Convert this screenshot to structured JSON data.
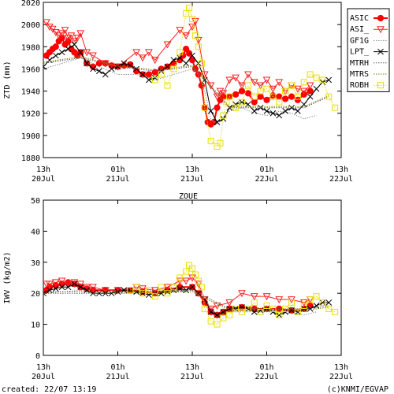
{
  "title": "ZOUE",
  "footer": {
    "created": "created: 22/07 13:19",
    "credit": "(c)KNMI/EGVAP"
  },
  "legend": [
    {
      "name": "ASIC",
      "color": "#ff0000",
      "marker": "filled-circle",
      "line": "solid"
    },
    {
      "name": "ASI_",
      "color": "#ff2020",
      "marker": "down-triangle",
      "line": "solid"
    },
    {
      "name": "GF1G",
      "color": "#909090",
      "marker": "none",
      "line": "dotted"
    },
    {
      "name": "LPT_",
      "color": "#000000",
      "marker": "x",
      "line": "solid"
    },
    {
      "name": "MTRH",
      "color": "#606060",
      "marker": "none",
      "line": "dotted"
    },
    {
      "name": "MTRS",
      "color": "#808000",
      "marker": "none",
      "line": "dotted"
    },
    {
      "name": "ROBH",
      "color": "#e8e000",
      "marker": "open-square",
      "line": "dotted"
    }
  ],
  "chart_data": [
    {
      "type": "line",
      "ylabel": "ZTD (mm)",
      "ylim": [
        1880,
        2020
      ],
      "yticks": [
        1880,
        1900,
        1920,
        1940,
        1960,
        1980,
        2000,
        2020
      ],
      "xlim_hours": [
        0,
        48
      ],
      "xticks": [
        {
          "hour": 0,
          "top": "13h",
          "bottom": "20Jul"
        },
        {
          "hour": 12,
          "top": "01h",
          "bottom": "21Jul"
        },
        {
          "hour": 24,
          "top": "13h",
          "bottom": "21Jul"
        },
        {
          "hour": 36,
          "top": "01h",
          "bottom": "22Jul"
        },
        {
          "hour": 48,
          "top": "13h",
          "bottom": "22Jul"
        }
      ],
      "series": [
        {
          "name": "ASIC",
          "x": [
            0.5,
            1,
            1.5,
            2,
            2.5,
            3,
            3.5,
            4,
            4.5,
            5,
            5.5,
            6,
            7,
            8,
            9,
            10,
            11,
            12,
            13,
            14,
            15,
            16,
            17,
            18,
            19,
            20,
            21,
            22,
            22.5,
            23,
            23.5,
            24,
            24.5,
            25,
            25.5,
            26,
            26.5,
            27,
            27.5,
            28,
            28.5,
            29,
            30,
            31,
            32,
            33,
            34,
            35,
            36,
            37,
            38,
            39,
            40,
            41,
            42,
            43
          ],
          "y": [
            1972,
            1975,
            1978,
            1980,
            1985,
            1988,
            1982,
            1985,
            1978,
            1975,
            1972,
            1975,
            1965,
            1962,
            1965,
            1965,
            1963,
            1962,
            1963,
            1964,
            1958,
            1955,
            1955,
            1957,
            1960,
            1962,
            1965,
            1968,
            1972,
            1978,
            1974,
            1968,
            1960,
            1955,
            1945,
            1925,
            1912,
            1910,
            1912,
            1925,
            1932,
            1935,
            1935,
            1937,
            1940,
            1938,
            1930,
            1935,
            1932,
            1936,
            1935,
            1933,
            1935,
            1932,
            1937,
            1940
          ]
        },
        {
          "name": "ASI_",
          "x": [
            0.5,
            1,
            1.5,
            2,
            2.5,
            3,
            3.5,
            4,
            4.5,
            5,
            5.5,
            6,
            7,
            8,
            10,
            12,
            15,
            16,
            17,
            18,
            20,
            22,
            23,
            24,
            24.5,
            25,
            26,
            27,
            28,
            28.5,
            29,
            30,
            31,
            32,
            33,
            34,
            35,
            36,
            37,
            38,
            39,
            40,
            41,
            42,
            43
          ],
          "y": [
            2002,
            1998,
            1996,
            1993,
            1990,
            1992,
            1995,
            1988,
            1990,
            1985,
            1988,
            1992,
            1975,
            1972,
            1965,
            1962,
            1975,
            1970,
            1975,
            1968,
            1982,
            1995,
            1990,
            1998,
            2003,
            1986,
            1955,
            1945,
            1935,
            1940,
            1938,
            1950,
            1952,
            1945,
            1955,
            1948,
            1945,
            1950,
            1942,
            1948,
            1940,
            1945,
            1942,
            1940,
            1945
          ]
        },
        {
          "name": "GF1G",
          "x": [
            0,
            3,
            6,
            9,
            12,
            15,
            18,
            21,
            24,
            25,
            26,
            27,
            28,
            30,
            32,
            34,
            36,
            38,
            40,
            42,
            44
          ],
          "y": [
            1960,
            1965,
            1970,
            1962,
            1955,
            1955,
            1950,
            1955,
            1960,
            1955,
            1940,
            1915,
            1910,
            1922,
            1925,
            1920,
            1918,
            1922,
            1920,
            1915,
            1918
          ]
        },
        {
          "name": "LPT_",
          "x": [
            0,
            1,
            2,
            3,
            4,
            5,
            6,
            7,
            8,
            9,
            10,
            11,
            12,
            13,
            14,
            15,
            16,
            17,
            18,
            19,
            20,
            21,
            22,
            23,
            24,
            25,
            26,
            27,
            28,
            29,
            30,
            31,
            32,
            33,
            34,
            35,
            36,
            37,
            38,
            39,
            40,
            41,
            42,
            43,
            44,
            45,
            46
          ],
          "y": [
            1962,
            1968,
            1972,
            1975,
            1978,
            1982,
            1975,
            1965,
            1960,
            1958,
            1955,
            1960,
            1962,
            1965,
            1963,
            1960,
            1955,
            1950,
            1952,
            1958,
            1962,
            1968,
            1970,
            1965,
            1972,
            1965,
            1950,
            1922,
            1912,
            1915,
            1925,
            1928,
            1930,
            1928,
            1922,
            1925,
            1922,
            1920,
            1918,
            1922,
            1925,
            1922,
            1928,
            1935,
            1942,
            1948,
            1950
          ]
        },
        {
          "name": "MTRH",
          "x": [
            0,
            6,
            12,
            18,
            24,
            30,
            36,
            42,
            46
          ],
          "y": [
            1965,
            1970,
            1962,
            1958,
            1962,
            1925,
            1925,
            1925,
            1935
          ]
        },
        {
          "name": "MTRS",
          "x": [
            0,
            6,
            12,
            18,
            24,
            30,
            36,
            42,
            46
          ],
          "y": [
            1966,
            1971,
            1963,
            1959,
            1963,
            1926,
            1926,
            1926,
            1936
          ]
        },
        {
          "name": "ROBH",
          "x": [
            18,
            19,
            20,
            21,
            22,
            23,
            23.5,
            24,
            24.5,
            25,
            25.5,
            26,
            27,
            28,
            28.5,
            29,
            29.5,
            30,
            31,
            32,
            33,
            34,
            35,
            36,
            37,
            38,
            39,
            40,
            41,
            42,
            43,
            44,
            45,
            46,
            47
          ],
          "y": [
            1950,
            1955,
            1945,
            1960,
            1975,
            2010,
            2015,
            2005,
            1990,
            1980,
            1965,
            1925,
            1895,
            1890,
            1893,
            1918,
            1930,
            1935,
            1925,
            1930,
            1945,
            1935,
            1940,
            1942,
            1935,
            1930,
            1940,
            1945,
            1935,
            1948,
            1955,
            1952,
            1950,
            1935,
            1925
          ]
        }
      ]
    },
    {
      "type": "line",
      "ylabel": "IWV (kg/m2)",
      "ylim": [
        0,
        50
      ],
      "yticks": [
        0,
        10,
        20,
        30,
        40,
        50
      ],
      "xlim_hours": [
        0,
        48
      ],
      "xticks": [
        {
          "hour": 0,
          "top": "13h",
          "bottom": "20Jul"
        },
        {
          "hour": 12,
          "top": "01h",
          "bottom": "21Jul"
        },
        {
          "hour": 24,
          "top": "13h",
          "bottom": "21Jul"
        },
        {
          "hour": 36,
          "top": "01h",
          "bottom": "22Jul"
        },
        {
          "hour": 48,
          "top": "13h",
          "bottom": "22Jul"
        }
      ],
      "series": [
        {
          "name": "ASIC",
          "x": [
            0.5,
            1,
            2,
            3,
            4,
            5,
            6,
            7,
            8,
            10,
            12,
            14,
            16,
            18,
            20,
            22,
            24,
            25,
            26,
            27,
            28,
            29,
            30,
            32,
            34,
            36,
            38,
            40,
            42,
            43
          ],
          "y": [
            21,
            22,
            22.5,
            23,
            23.5,
            23,
            22,
            21.5,
            21,
            21,
            21,
            21,
            20.5,
            20,
            21,
            22,
            22,
            20,
            17,
            14,
            13,
            14,
            15,
            15.5,
            15,
            15,
            15,
            14.5,
            15,
            16
          ]
        },
        {
          "name": "ASI_",
          "x": [
            0.5,
            1,
            2,
            3,
            4,
            5,
            6,
            7,
            8,
            10,
            12,
            15,
            16,
            18,
            20,
            22,
            23,
            24,
            25,
            26,
            27,
            28,
            30,
            32,
            34,
            36,
            38,
            40,
            42,
            43
          ],
          "y": [
            23,
            23,
            23.5,
            24,
            23,
            23.5,
            23,
            22,
            22,
            21,
            21,
            22,
            21.5,
            21,
            22,
            24,
            24,
            25,
            23,
            18,
            15,
            16,
            17,
            20,
            19,
            19,
            18,
            18,
            17,
            18
          ]
        },
        {
          "name": "GF1G",
          "x": [
            0,
            6,
            12,
            18,
            24,
            26,
            28,
            30,
            34,
            38,
            42,
            44
          ],
          "y": [
            20,
            21,
            20,
            20,
            21,
            18,
            13,
            14,
            14,
            14,
            13,
            14
          ]
        },
        {
          "name": "LPT_",
          "x": [
            0,
            1,
            2,
            3,
            4,
            5,
            6,
            7,
            8,
            9,
            10,
            11,
            12,
            13,
            14,
            15,
            16,
            17,
            18,
            19,
            20,
            21,
            22,
            23,
            24,
            25,
            26,
            27,
            28,
            29,
            30,
            31,
            32,
            33,
            34,
            35,
            36,
            37,
            38,
            39,
            40,
            41,
            42,
            43,
            44,
            45,
            46
          ],
          "y": [
            20,
            21,
            21.5,
            22,
            22,
            23,
            22,
            21,
            20,
            20,
            20,
            20,
            20.5,
            21,
            21,
            20.5,
            20,
            19.5,
            20,
            20,
            20.5,
            21,
            21.5,
            21,
            22,
            20,
            18,
            14,
            13,
            14,
            15,
            15,
            15.5,
            15,
            14,
            14.5,
            15,
            14,
            13,
            14,
            14.5,
            14,
            15,
            15,
            16,
            17,
            17
          ]
        },
        {
          "name": "MTRH",
          "x": [
            0,
            12,
            24,
            30,
            36,
            42,
            46
          ],
          "y": [
            20.5,
            20.5,
            21,
            15,
            15,
            15,
            16
          ]
        },
        {
          "name": "MTRS",
          "x": [
            0,
            12,
            24,
            30,
            36,
            42,
            46
          ],
          "y": [
            20,
            20,
            20.5,
            14.5,
            14.5,
            14.5,
            15.5
          ]
        },
        {
          "name": "ROBH",
          "x": [
            14,
            15,
            16,
            17,
            18,
            19,
            20,
            21,
            22,
            23,
            23.5,
            24,
            24.5,
            25,
            25.5,
            26,
            27,
            28,
            29,
            30,
            31,
            32,
            33,
            34,
            35,
            36,
            37,
            38,
            39,
            40,
            41,
            42,
            43,
            44,
            45,
            46,
            47
          ],
          "y": [
            21,
            22,
            20,
            21,
            19,
            22,
            20,
            22,
            25,
            27,
            29,
            28,
            26,
            24,
            22,
            15,
            11,
            10,
            12,
            13,
            15,
            14,
            15,
            17,
            14,
            16,
            15,
            13,
            15,
            17,
            14,
            16,
            18,
            19,
            17,
            15,
            14
          ]
        }
      ]
    }
  ]
}
